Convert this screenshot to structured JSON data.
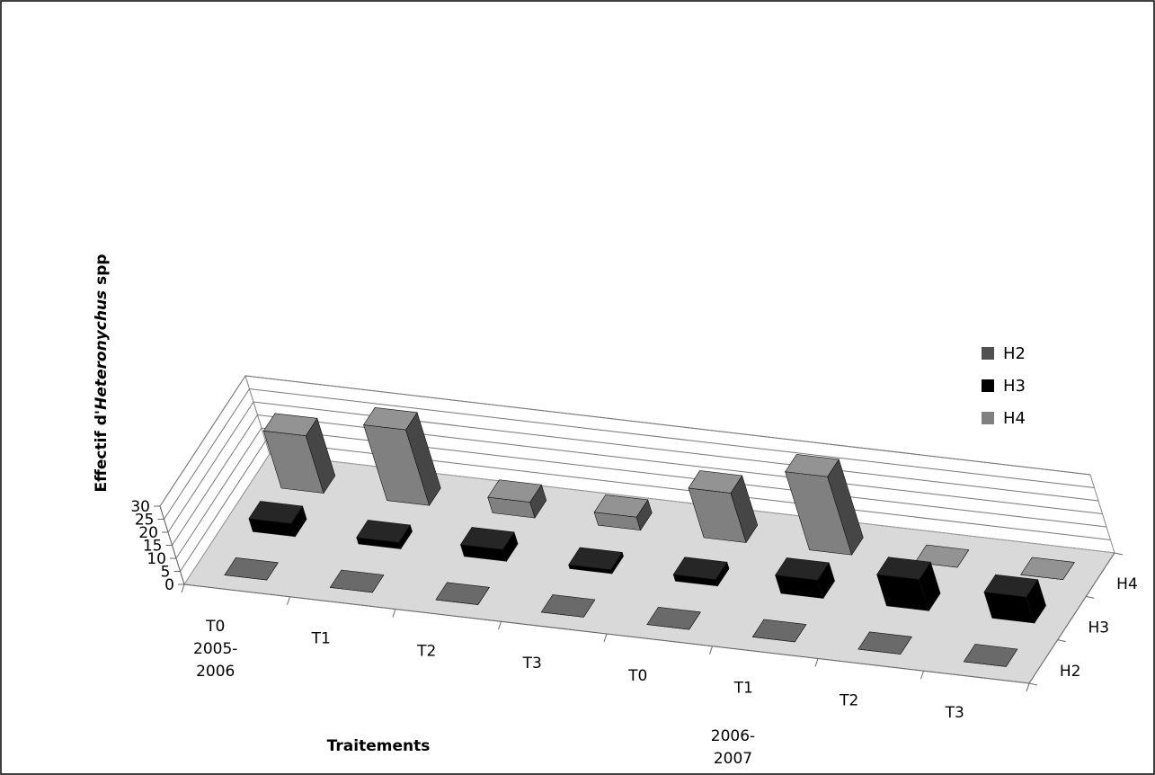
{
  "chart_data": {
    "type": "bar",
    "subtype": "3d-column",
    "ylabel_parts": [
      "Effectif d'",
      "Heteronychus",
      " spp"
    ],
    "xlabel": "Traitements",
    "ylim": [
      0,
      30
    ],
    "yticks": [
      0,
      5,
      10,
      15,
      20,
      25,
      30
    ],
    "categories": [
      "T0",
      "T1",
      "T2",
      "T3",
      "T0",
      "T1",
      "T2",
      "T3"
    ],
    "groups": [
      {
        "label": [
          "2005-",
          "2006"
        ]
      },
      {
        "label": [
          "2006-",
          "2007"
        ]
      }
    ],
    "depth_labels": [
      "H2",
      "H3",
      "H4"
    ],
    "series": [
      {
        "name": "H2",
        "color": "#505050",
        "values": [
          0,
          0,
          0,
          0,
          0,
          0,
          0,
          0
        ]
      },
      {
        "name": "H3",
        "color": "#000000",
        "values": [
          5,
          2.5,
          4.5,
          1.5,
          2.5,
          7,
          12,
          10
        ]
      },
      {
        "name": "H4",
        "color": "#808080",
        "values": [
          22,
          29,
          6,
          5,
          19,
          30,
          0,
          0
        ]
      }
    ],
    "legend_position": "right",
    "grid": true
  }
}
